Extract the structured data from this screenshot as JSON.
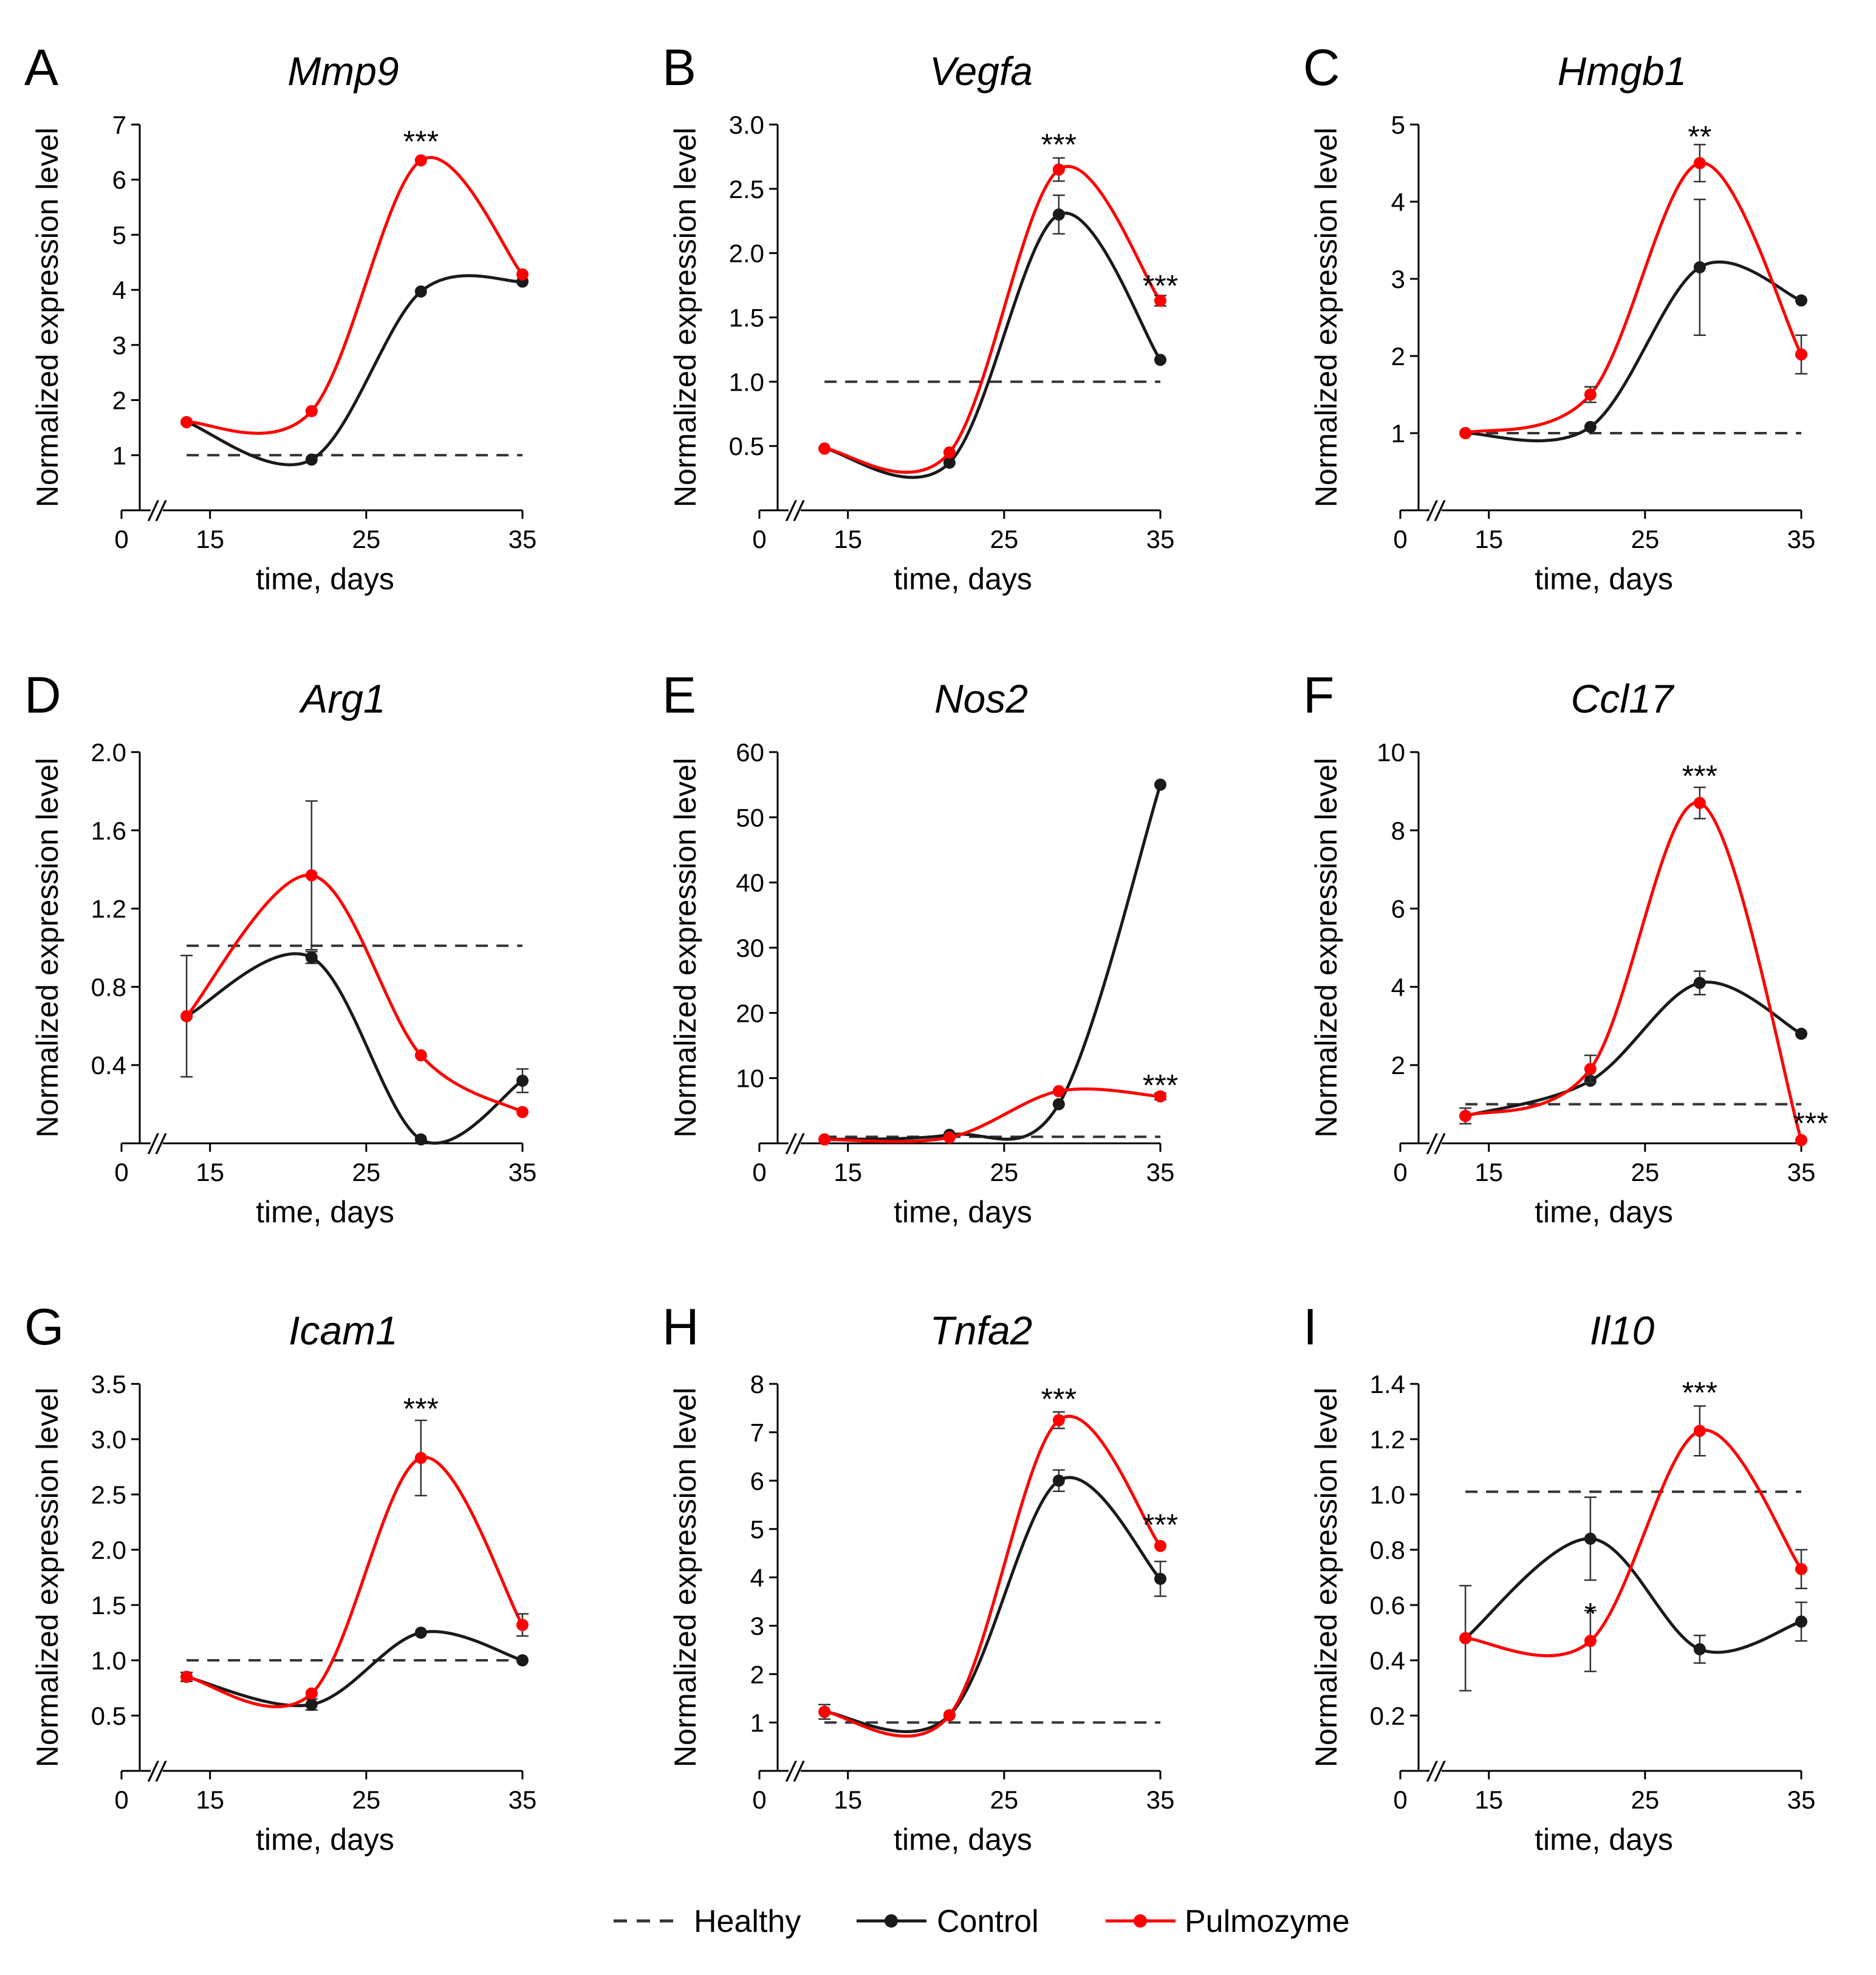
{
  "legend": {
    "healthy_label": "Healthy",
    "control_label": "Control",
    "pulmozyme_label": "Pulmozyme"
  },
  "colors": {
    "control": "#1a1a1a",
    "pulmozyme": "#ff0000",
    "healthy": "#333333",
    "axis": "#000000"
  },
  "axis_common": {
    "xlabel": "time, days",
    "ylabel": "Normalized expression level",
    "x_ticks": [
      "0",
      "15",
      "25",
      "35"
    ],
    "break_mark": "//"
  },
  "chart_data": [
    {
      "panel": "A",
      "title": "Mmp9",
      "type": "line",
      "x": [
        13.5,
        21.5,
        28.5,
        35
      ],
      "y_ticks": [
        "1",
        "2",
        "3",
        "4",
        "5",
        "6",
        "7"
      ],
      "ylim": [
        0,
        7
      ],
      "healthy": 1,
      "series": [
        {
          "name": "Control",
          "values": [
            1.6,
            0.92,
            3.97,
            4.15
          ],
          "errors": [
            0,
            0,
            0,
            0
          ]
        },
        {
          "name": "Pulmozyme",
          "values": [
            1.6,
            1.8,
            6.35,
            4.28
          ],
          "errors": [
            0,
            0,
            0,
            0
          ]
        }
      ],
      "annotations": [
        {
          "text": "***",
          "x": 28.5,
          "y": 6.35,
          "above_error": 0.35
        }
      ]
    },
    {
      "panel": "B",
      "title": "Vegfa",
      "type": "line",
      "x": [
        13.5,
        21.5,
        28.5,
        35
      ],
      "y_ticks": [
        "0.5",
        "1.0",
        "1.5",
        "2.0",
        "2.5",
        "3.0"
      ],
      "ylim": [
        0,
        3.0
      ],
      "healthy": 1.0,
      "series": [
        {
          "name": "Control",
          "values": [
            0.48,
            0.37,
            2.3,
            1.17
          ],
          "errors": [
            0,
            0,
            0.15,
            0
          ]
        },
        {
          "name": "Pulmozyme",
          "values": [
            0.48,
            0.45,
            2.65,
            1.63
          ],
          "errors": [
            0,
            0,
            0.09,
            0.04
          ]
        }
      ],
      "annotations": [
        {
          "text": "***",
          "x": 28.5,
          "y": 2.65,
          "above_error": 0.2
        },
        {
          "text": "***",
          "x": 35,
          "y": 1.63,
          "above_error": 0.12
        }
      ]
    },
    {
      "panel": "C",
      "title": "Hmgb1",
      "type": "line",
      "x": [
        13.5,
        21.5,
        28.5,
        35
      ],
      "y_ticks": [
        "1",
        "2",
        "3",
        "4",
        "5"
      ],
      "ylim": [
        0,
        5
      ],
      "healthy": 1,
      "series": [
        {
          "name": "Control",
          "values": [
            1.0,
            1.08,
            3.15,
            2.72
          ],
          "errors": [
            0,
            0,
            0.88,
            0
          ]
        },
        {
          "name": "Pulmozyme",
          "values": [
            1.0,
            1.5,
            4.5,
            2.02
          ],
          "errors": [
            0,
            0.1,
            0.24,
            0.25
          ]
        }
      ],
      "annotations": [
        {
          "text": "**",
          "x": 28.5,
          "y": 4.5,
          "above_error": 0.35
        }
      ]
    },
    {
      "panel": "D",
      "title": "Arg1",
      "type": "line",
      "x": [
        13.5,
        21.5,
        28.5,
        35
      ],
      "y_ticks": [
        "0.4",
        "0.8",
        "1.2",
        "1.6",
        "2.0"
      ],
      "ylim": [
        0,
        2.0
      ],
      "healthy": 1.01,
      "series": [
        {
          "name": "Control",
          "values": [
            0.65,
            0.95,
            0.02,
            0.32
          ],
          "errors": [
            0,
            0.03,
            0,
            0.06
          ]
        },
        {
          "name": "Pulmozyme",
          "values": [
            0.65,
            1.37,
            0.45,
            0.16
          ],
          "errors": [
            0.31,
            0.38,
            0,
            0
          ]
        }
      ],
      "annotations": []
    },
    {
      "panel": "E",
      "title": "Nos2",
      "type": "line",
      "x": [
        13.5,
        21.5,
        28.5,
        35
      ],
      "y_ticks": [
        "10",
        "20",
        "30",
        "40",
        "50",
        "60"
      ],
      "ylim": [
        0,
        60
      ],
      "healthy": 1,
      "series": [
        {
          "name": "Control",
          "values": [
            0.6,
            1.3,
            6.0,
            55.0
          ],
          "errors": [
            0,
            0,
            0,
            0
          ]
        },
        {
          "name": "Pulmozyme",
          "values": [
            0.6,
            0.9,
            8.0,
            7.2
          ],
          "errors": [
            0,
            0,
            0,
            0.5
          ]
        }
      ],
      "annotations": [
        {
          "text": "***",
          "x": 35,
          "y": 7.2,
          "above_error": 1.8
        }
      ]
    },
    {
      "panel": "F",
      "title": "Ccl17",
      "type": "line",
      "x": [
        13.5,
        21.5,
        28.5,
        35
      ],
      "y_ticks": [
        "2",
        "4",
        "6",
        "8",
        "10"
      ],
      "ylim": [
        0,
        10
      ],
      "healthy": 1,
      "series": [
        {
          "name": "Control",
          "values": [
            0.7,
            1.6,
            4.1,
            2.8
          ],
          "errors": [
            0,
            0,
            0.3,
            0
          ]
        },
        {
          "name": "Pulmozyme",
          "values": [
            0.7,
            1.9,
            8.7,
            0.08
          ],
          "errors": [
            0.2,
            0.35,
            0.4,
            0
          ]
        }
      ],
      "annotations": [
        {
          "text": "***",
          "x": 28.5,
          "y": 8.7,
          "above_error": 0.7
        },
        {
          "text": "***",
          "x": 35.6,
          "y": 0.08,
          "above_error": 0.45
        }
      ]
    },
    {
      "panel": "G",
      "title": "Icam1",
      "type": "line",
      "x": [
        13.5,
        21.5,
        28.5,
        35
      ],
      "y_ticks": [
        "0.5",
        "1.0",
        "1.5",
        "2.0",
        "2.5",
        "3.0",
        "3.5"
      ],
      "ylim": [
        0,
        3.5
      ],
      "healthy": 1.0,
      "series": [
        {
          "name": "Control",
          "values": [
            0.85,
            0.6,
            1.25,
            1.0
          ],
          "errors": [
            0.04,
            0.05,
            0,
            0
          ]
        },
        {
          "name": "Pulmozyme",
          "values": [
            0.85,
            0.7,
            2.83,
            1.32
          ],
          "errors": [
            0.04,
            0,
            0.34,
            0.1
          ]
        }
      ],
      "annotations": [
        {
          "text": "***",
          "x": 28.5,
          "y": 2.83,
          "above_error": 0.45
        }
      ]
    },
    {
      "panel": "H",
      "title": "Tnfa2",
      "type": "line",
      "x": [
        13.5,
        21.5,
        28.5,
        35
      ],
      "y_ticks": [
        "1",
        "2",
        "3",
        "4",
        "5",
        "6",
        "7",
        "8"
      ],
      "ylim": [
        0,
        8
      ],
      "healthy": 1,
      "series": [
        {
          "name": "Control",
          "values": [
            1.22,
            1.15,
            6.0,
            3.97
          ],
          "errors": [
            0,
            0,
            0.22,
            0.36
          ]
        },
        {
          "name": "Pulmozyme",
          "values": [
            1.22,
            1.15,
            7.25,
            4.65
          ],
          "errors": [
            0.15,
            0,
            0.17,
            0
          ]
        }
      ],
      "annotations": [
        {
          "text": "***",
          "x": 28.5,
          "y": 7.25,
          "above_error": 0.45
        },
        {
          "text": "***",
          "x": 35,
          "y": 4.65,
          "above_error": 0.45
        }
      ]
    },
    {
      "panel": "I",
      "title": "Il10",
      "type": "line",
      "x": [
        13.5,
        21.5,
        28.5,
        35
      ],
      "y_ticks": [
        "0.2",
        "0.4",
        "0.6",
        "0.8",
        "1.0",
        "1.2",
        "1.4"
      ],
      "ylim": [
        0,
        1.4
      ],
      "healthy": 1.01,
      "series": [
        {
          "name": "Control",
          "values": [
            0.48,
            0.84,
            0.44,
            0.54
          ],
          "errors": [
            0,
            0.15,
            0.05,
            0.07
          ]
        },
        {
          "name": "Pulmozyme",
          "values": [
            0.48,
            0.47,
            1.23,
            0.73
          ],
          "errors": [
            0.19,
            0.11,
            0.09,
            0.07
          ]
        }
      ],
      "annotations": [
        {
          "text": "***",
          "x": 28.5,
          "y": 1.23,
          "above_error": 0.14
        },
        {
          "text": "*",
          "x": 21.5,
          "y": 0.47,
          "above_error": 0.1
        }
      ]
    }
  ]
}
